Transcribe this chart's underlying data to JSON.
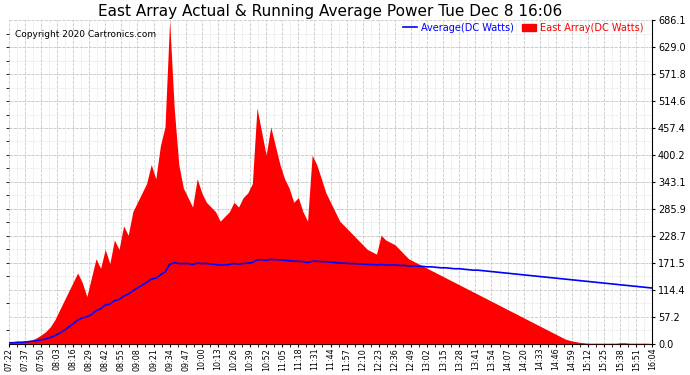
{
  "title": "East Array Actual & Running Average Power Tue Dec 8 16:06",
  "copyright": "Copyright 2020 Cartronics.com",
  "legend_avg": "Average(DC Watts)",
  "legend_east": "East Array(DC Watts)",
  "legend_avg_color": "blue",
  "legend_east_color": "red",
  "y_ticks": [
    0.0,
    57.2,
    114.4,
    171.5,
    228.7,
    285.9,
    343.1,
    400.2,
    457.4,
    514.6,
    571.8,
    629.0,
    686.1
  ],
  "ymax": 686.1,
  "ymin": 0.0,
  "fill_color": "red",
  "avg_line_color": "blue",
  "bg_color": "white",
  "grid_color": "#c8c8c8",
  "title_color": "black",
  "title_fontsize": 11,
  "x_labels": [
    "07:22",
    "07:37",
    "07:50",
    "08:03",
    "08:16",
    "08:29",
    "08:42",
    "08:55",
    "09:08",
    "09:21",
    "09:34",
    "09:47",
    "10:00",
    "10:13",
    "10:26",
    "10:39",
    "10:52",
    "11:05",
    "11:18",
    "11:31",
    "11:44",
    "11:57",
    "12:10",
    "12:23",
    "12:36",
    "12:49",
    "13:02",
    "13:15",
    "13:28",
    "13:41",
    "13:54",
    "14:07",
    "14:20",
    "14:33",
    "14:46",
    "14:59",
    "15:12",
    "15:25",
    "15:38",
    "15:51",
    "16:04"
  ],
  "east_power": [
    2,
    3,
    4,
    5,
    6,
    8,
    12,
    18,
    25,
    35,
    50,
    70,
    90,
    110,
    130,
    150,
    130,
    100,
    140,
    180,
    160,
    200,
    170,
    220,
    200,
    250,
    230,
    280,
    300,
    320,
    340,
    380,
    350,
    420,
    460,
    686,
    500,
    380,
    330,
    310,
    290,
    350,
    320,
    300,
    290,
    280,
    260,
    270,
    280,
    300,
    290,
    310,
    320,
    340,
    500,
    450,
    400,
    460,
    420,
    380,
    350,
    330,
    300,
    310,
    280,
    260,
    400,
    380,
    350,
    320,
    300,
    280,
    260,
    250,
    240,
    230,
    220,
    210,
    200,
    195,
    190,
    230,
    220,
    215,
    210,
    200,
    190,
    180,
    175,
    170,
    165,
    160,
    155,
    150,
    145,
    140,
    135,
    130,
    125,
    120,
    115,
    110,
    105,
    100,
    95,
    90,
    85,
    80,
    75,
    70,
    65,
    60,
    55,
    50,
    45,
    40,
    35,
    30,
    25,
    20,
    15,
    10,
    7,
    5,
    3,
    2,
    1,
    1,
    1,
    1,
    1,
    1,
    1,
    2,
    2,
    1,
    1,
    1,
    1,
    1,
    0
  ],
  "avg_power": [
    2,
    2,
    3,
    3,
    4,
    5,
    6,
    8,
    10,
    13,
    17,
    22,
    28,
    35,
    42,
    50,
    55,
    57,
    62,
    70,
    74,
    82,
    84,
    91,
    94,
    101,
    105,
    112,
    118,
    124,
    130,
    137,
    139,
    146,
    152,
    168,
    172,
    170,
    170,
    170,
    168,
    171,
    170,
    170,
    169,
    168,
    167,
    167,
    168,
    170,
    169,
    170,
    171,
    172,
    178,
    178,
    177,
    179,
    178,
    178,
    177,
    176,
    175,
    175,
    174,
    172,
    175,
    175,
    174,
    174,
    173,
    172,
    171,
    171,
    170,
    170,
    169,
    169,
    168,
    168,
    167,
    168,
    167,
    167,
    167,
    166,
    166,
    165,
    165,
    164,
    164,
    163,
    163,
    162,
    161,
    161,
    160,
    159,
    159,
    158,
    157,
    156,
    156,
    155,
    154,
    153,
    152,
    151,
    150,
    149,
    148,
    147,
    146,
    145,
    144,
    143,
    142,
    141,
    140,
    139,
    138,
    137,
    136,
    135,
    134,
    133,
    132,
    131,
    130,
    129,
    128,
    127,
    126,
    125,
    124,
    123,
    122,
    121,
    120,
    119,
    118
  ]
}
